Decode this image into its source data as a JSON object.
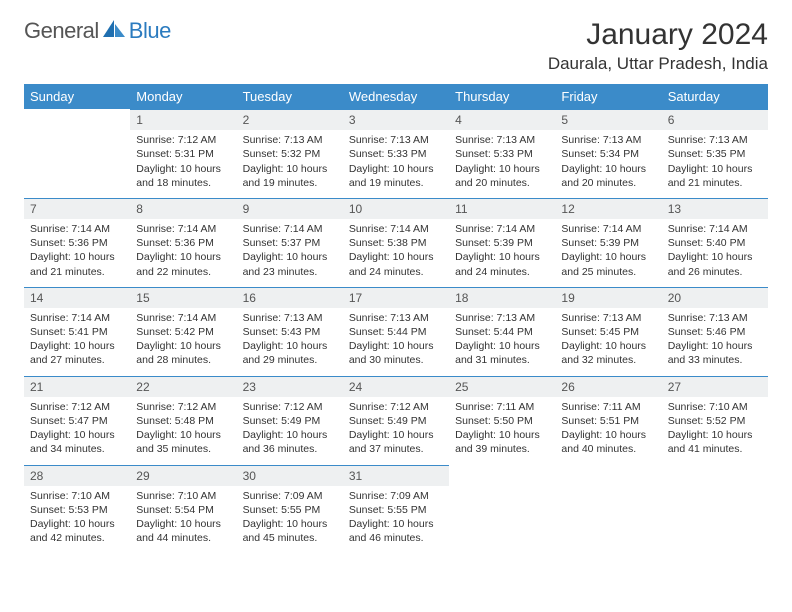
{
  "brand": {
    "part1": "General",
    "part2": "Blue"
  },
  "title": "January 2024",
  "location": "Daurala, Uttar Pradesh, India",
  "colors": {
    "header_bg": "#3b8bc9",
    "header_text": "#ffffff",
    "daynum_bg": "#eef0f1",
    "row_divider": "#3b8bc9",
    "brand_gray": "#555555",
    "brand_blue": "#2b7bbf"
  },
  "weekdays": [
    "Sunday",
    "Monday",
    "Tuesday",
    "Wednesday",
    "Thursday",
    "Friday",
    "Saturday"
  ],
  "weeks": [
    [
      {
        "n": "",
        "sunrise": "",
        "sunset": "",
        "daylight": ""
      },
      {
        "n": "1",
        "sunrise": "Sunrise: 7:12 AM",
        "sunset": "Sunset: 5:31 PM",
        "daylight": "Daylight: 10 hours and 18 minutes."
      },
      {
        "n": "2",
        "sunrise": "Sunrise: 7:13 AM",
        "sunset": "Sunset: 5:32 PM",
        "daylight": "Daylight: 10 hours and 19 minutes."
      },
      {
        "n": "3",
        "sunrise": "Sunrise: 7:13 AM",
        "sunset": "Sunset: 5:33 PM",
        "daylight": "Daylight: 10 hours and 19 minutes."
      },
      {
        "n": "4",
        "sunrise": "Sunrise: 7:13 AM",
        "sunset": "Sunset: 5:33 PM",
        "daylight": "Daylight: 10 hours and 20 minutes."
      },
      {
        "n": "5",
        "sunrise": "Sunrise: 7:13 AM",
        "sunset": "Sunset: 5:34 PM",
        "daylight": "Daylight: 10 hours and 20 minutes."
      },
      {
        "n": "6",
        "sunrise": "Sunrise: 7:13 AM",
        "sunset": "Sunset: 5:35 PM",
        "daylight": "Daylight: 10 hours and 21 minutes."
      }
    ],
    [
      {
        "n": "7",
        "sunrise": "Sunrise: 7:14 AM",
        "sunset": "Sunset: 5:36 PM",
        "daylight": "Daylight: 10 hours and 21 minutes."
      },
      {
        "n": "8",
        "sunrise": "Sunrise: 7:14 AM",
        "sunset": "Sunset: 5:36 PM",
        "daylight": "Daylight: 10 hours and 22 minutes."
      },
      {
        "n": "9",
        "sunrise": "Sunrise: 7:14 AM",
        "sunset": "Sunset: 5:37 PM",
        "daylight": "Daylight: 10 hours and 23 minutes."
      },
      {
        "n": "10",
        "sunrise": "Sunrise: 7:14 AM",
        "sunset": "Sunset: 5:38 PM",
        "daylight": "Daylight: 10 hours and 24 minutes."
      },
      {
        "n": "11",
        "sunrise": "Sunrise: 7:14 AM",
        "sunset": "Sunset: 5:39 PM",
        "daylight": "Daylight: 10 hours and 24 minutes."
      },
      {
        "n": "12",
        "sunrise": "Sunrise: 7:14 AM",
        "sunset": "Sunset: 5:39 PM",
        "daylight": "Daylight: 10 hours and 25 minutes."
      },
      {
        "n": "13",
        "sunrise": "Sunrise: 7:14 AM",
        "sunset": "Sunset: 5:40 PM",
        "daylight": "Daylight: 10 hours and 26 minutes."
      }
    ],
    [
      {
        "n": "14",
        "sunrise": "Sunrise: 7:14 AM",
        "sunset": "Sunset: 5:41 PM",
        "daylight": "Daylight: 10 hours and 27 minutes."
      },
      {
        "n": "15",
        "sunrise": "Sunrise: 7:14 AM",
        "sunset": "Sunset: 5:42 PM",
        "daylight": "Daylight: 10 hours and 28 minutes."
      },
      {
        "n": "16",
        "sunrise": "Sunrise: 7:13 AM",
        "sunset": "Sunset: 5:43 PM",
        "daylight": "Daylight: 10 hours and 29 minutes."
      },
      {
        "n": "17",
        "sunrise": "Sunrise: 7:13 AM",
        "sunset": "Sunset: 5:44 PM",
        "daylight": "Daylight: 10 hours and 30 minutes."
      },
      {
        "n": "18",
        "sunrise": "Sunrise: 7:13 AM",
        "sunset": "Sunset: 5:44 PM",
        "daylight": "Daylight: 10 hours and 31 minutes."
      },
      {
        "n": "19",
        "sunrise": "Sunrise: 7:13 AM",
        "sunset": "Sunset: 5:45 PM",
        "daylight": "Daylight: 10 hours and 32 minutes."
      },
      {
        "n": "20",
        "sunrise": "Sunrise: 7:13 AM",
        "sunset": "Sunset: 5:46 PM",
        "daylight": "Daylight: 10 hours and 33 minutes."
      }
    ],
    [
      {
        "n": "21",
        "sunrise": "Sunrise: 7:12 AM",
        "sunset": "Sunset: 5:47 PM",
        "daylight": "Daylight: 10 hours and 34 minutes."
      },
      {
        "n": "22",
        "sunrise": "Sunrise: 7:12 AM",
        "sunset": "Sunset: 5:48 PM",
        "daylight": "Daylight: 10 hours and 35 minutes."
      },
      {
        "n": "23",
        "sunrise": "Sunrise: 7:12 AM",
        "sunset": "Sunset: 5:49 PM",
        "daylight": "Daylight: 10 hours and 36 minutes."
      },
      {
        "n": "24",
        "sunrise": "Sunrise: 7:12 AM",
        "sunset": "Sunset: 5:49 PM",
        "daylight": "Daylight: 10 hours and 37 minutes."
      },
      {
        "n": "25",
        "sunrise": "Sunrise: 7:11 AM",
        "sunset": "Sunset: 5:50 PM",
        "daylight": "Daylight: 10 hours and 39 minutes."
      },
      {
        "n": "26",
        "sunrise": "Sunrise: 7:11 AM",
        "sunset": "Sunset: 5:51 PM",
        "daylight": "Daylight: 10 hours and 40 minutes."
      },
      {
        "n": "27",
        "sunrise": "Sunrise: 7:10 AM",
        "sunset": "Sunset: 5:52 PM",
        "daylight": "Daylight: 10 hours and 41 minutes."
      }
    ],
    [
      {
        "n": "28",
        "sunrise": "Sunrise: 7:10 AM",
        "sunset": "Sunset: 5:53 PM",
        "daylight": "Daylight: 10 hours and 42 minutes."
      },
      {
        "n": "29",
        "sunrise": "Sunrise: 7:10 AM",
        "sunset": "Sunset: 5:54 PM",
        "daylight": "Daylight: 10 hours and 44 minutes."
      },
      {
        "n": "30",
        "sunrise": "Sunrise: 7:09 AM",
        "sunset": "Sunset: 5:55 PM",
        "daylight": "Daylight: 10 hours and 45 minutes."
      },
      {
        "n": "31",
        "sunrise": "Sunrise: 7:09 AM",
        "sunset": "Sunset: 5:55 PM",
        "daylight": "Daylight: 10 hours and 46 minutes."
      },
      {
        "n": "",
        "sunrise": "",
        "sunset": "",
        "daylight": ""
      },
      {
        "n": "",
        "sunrise": "",
        "sunset": "",
        "daylight": ""
      },
      {
        "n": "",
        "sunrise": "",
        "sunset": "",
        "daylight": ""
      }
    ]
  ]
}
